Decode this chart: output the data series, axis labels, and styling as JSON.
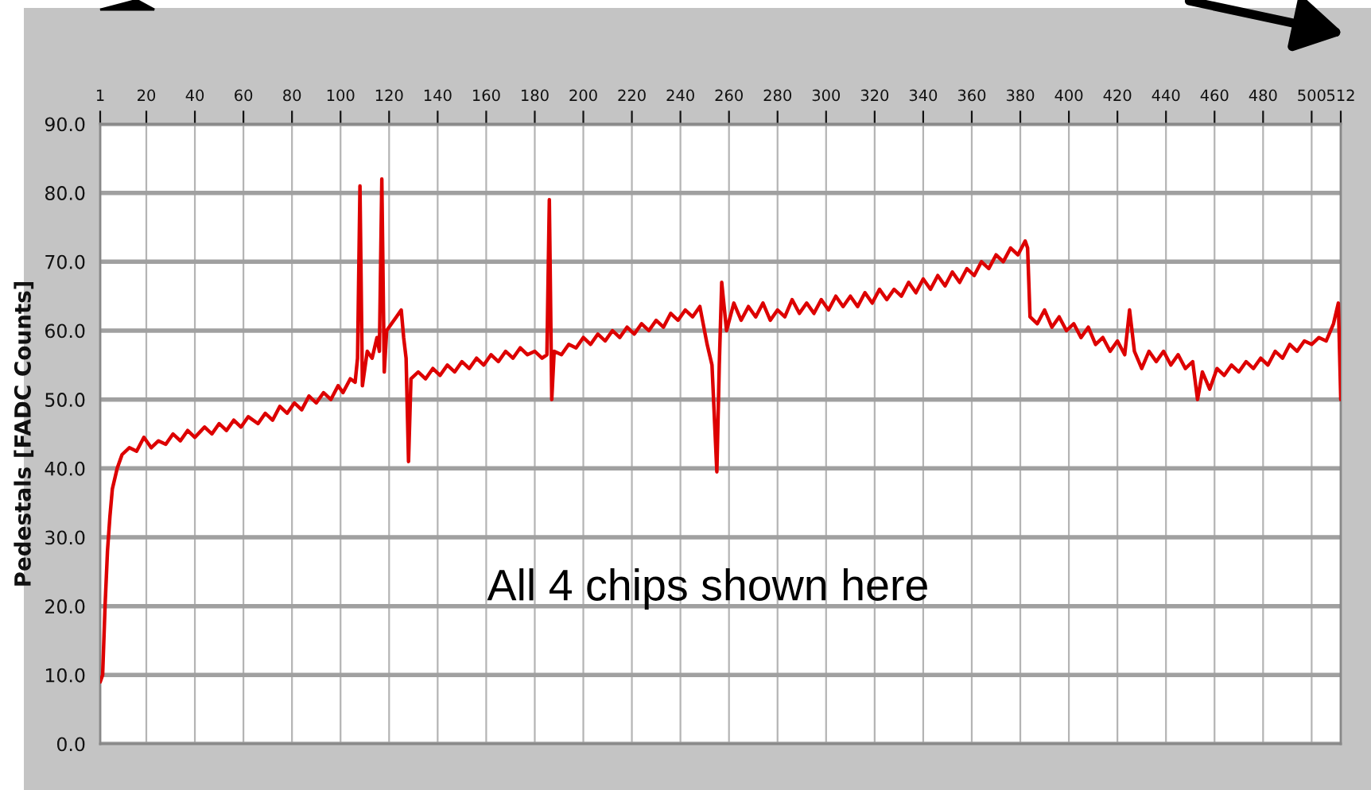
{
  "chart_data": {
    "type": "line",
    "ylabel": "Pedestals [FADC Counts]",
    "annotations": [
      "All 4 chips shown here"
    ],
    "xlim": [
      1,
      512
    ],
    "xticks": [
      1,
      20,
      40,
      60,
      80,
      100,
      120,
      140,
      160,
      180,
      200,
      220,
      240,
      260,
      280,
      300,
      320,
      340,
      360,
      380,
      400,
      420,
      440,
      460,
      480,
      500,
      512
    ],
    "ylim": [
      0,
      90
    ],
    "yticks": [
      {
        "value": 0,
        "label": "0.0"
      },
      {
        "value": 10,
        "label": "10.0"
      },
      {
        "value": 20,
        "label": "20.0"
      },
      {
        "value": 30,
        "label": "30.0"
      },
      {
        "value": 40,
        "label": "40.0"
      },
      {
        "value": 50,
        "label": "50.0"
      },
      {
        "value": 60,
        "label": "60.0"
      },
      {
        "value": 70,
        "label": "70.0"
      },
      {
        "value": 80,
        "label": "80.0"
      },
      {
        "value": 90,
        "label": "90.0"
      }
    ],
    "grid": true,
    "series": [
      {
        "color": "#dd0000",
        "x": [
          1,
          2,
          3,
          4,
          5,
          6,
          8,
          10,
          13,
          16,
          19,
          22,
          25,
          28,
          31,
          34,
          37,
          40,
          44,
          47,
          50,
          53,
          56,
          59,
          62,
          66,
          69,
          72,
          75,
          78,
          81,
          84,
          87,
          90,
          93,
          96,
          99,
          101,
          104,
          106,
          107,
          108,
          109,
          111,
          113,
          115,
          116,
          117,
          118,
          119,
          121,
          123,
          125,
          126,
          127,
          128,
          129,
          132,
          135,
          138,
          141,
          144,
          147,
          150,
          153,
          156,
          159,
          162,
          165,
          168,
          171,
          174,
          177,
          180,
          183,
          185,
          186,
          187,
          188,
          191,
          194,
          197,
          200,
          203,
          206,
          209,
          212,
          215,
          218,
          221,
          224,
          227,
          230,
          233,
          236,
          239,
          242,
          245,
          248,
          251,
          253,
          255,
          256,
          257,
          259,
          262,
          265,
          268,
          271,
          274,
          277,
          280,
          283,
          286,
          289,
          292,
          295,
          298,
          301,
          304,
          307,
          310,
          313,
          316,
          319,
          322,
          325,
          328,
          331,
          334,
          337,
          340,
          343,
          346,
          349,
          352,
          355,
          358,
          361,
          364,
          367,
          370,
          373,
          376,
          379,
          382,
          383,
          384,
          387,
          390,
          393,
          396,
          399,
          402,
          405,
          408,
          411,
          414,
          417,
          420,
          423,
          425,
          427,
          430,
          433,
          436,
          439,
          442,
          445,
          448,
          451,
          453,
          455,
          458,
          461,
          464,
          467,
          470,
          473,
          476,
          479,
          482,
          485,
          488,
          491,
          494,
          497,
          500,
          503,
          506,
          509,
          511,
          512
        ],
        "values": [
          9,
          10,
          20,
          28,
          33,
          37,
          40,
          42,
          43,
          42.5,
          44.5,
          43,
          44,
          43.5,
          45,
          44,
          45.5,
          44.5,
          46,
          45,
          46.5,
          45.5,
          47,
          46,
          47.5,
          46.5,
          48,
          47,
          49,
          48,
          49.5,
          48.5,
          50.5,
          49.5,
          51,
          50,
          52,
          51,
          53,
          52.5,
          56,
          81,
          52,
          57,
          56,
          59,
          57,
          82,
          54,
          60,
          61,
          62,
          63,
          59,
          56,
          41,
          53,
          54,
          53,
          54.5,
          53.5,
          55,
          54,
          55.5,
          54.5,
          56,
          55,
          56.5,
          55.5,
          57,
          56,
          57.5,
          56.5,
          57,
          56,
          56.5,
          79,
          50,
          57,
          56.5,
          58,
          57.5,
          59,
          58,
          59.5,
          58.5,
          60,
          59,
          60.5,
          59.5,
          61,
          60,
          61.5,
          60.5,
          62.5,
          61.5,
          63,
          62,
          63.5,
          58,
          55,
          39.5,
          55,
          67,
          60,
          64,
          61.5,
          63.5,
          62,
          64,
          61.5,
          63,
          62,
          64.5,
          62.5,
          64,
          62.5,
          64.5,
          63,
          65,
          63.5,
          65,
          63.5,
          65.5,
          64,
          66,
          64.5,
          66,
          65,
          67,
          65.5,
          67.5,
          66,
          68,
          66.5,
          68.5,
          67,
          69,
          68,
          70,
          69,
          71,
          70,
          72,
          71,
          73,
          72,
          62,
          61,
          63,
          60.5,
          62,
          60,
          61,
          59,
          60.5,
          58,
          59,
          57,
          58.5,
          56.5,
          63,
          57,
          54.5,
          57,
          55.5,
          57,
          55,
          56.5,
          54.5,
          55.5,
          50,
          54,
          51.5,
          54.5,
          53.5,
          55,
          54,
          55.5,
          54.5,
          56,
          55,
          57,
          56,
          58,
          57,
          58.5,
          58,
          59,
          58.5,
          61,
          64,
          50
        ]
      }
    ]
  }
}
